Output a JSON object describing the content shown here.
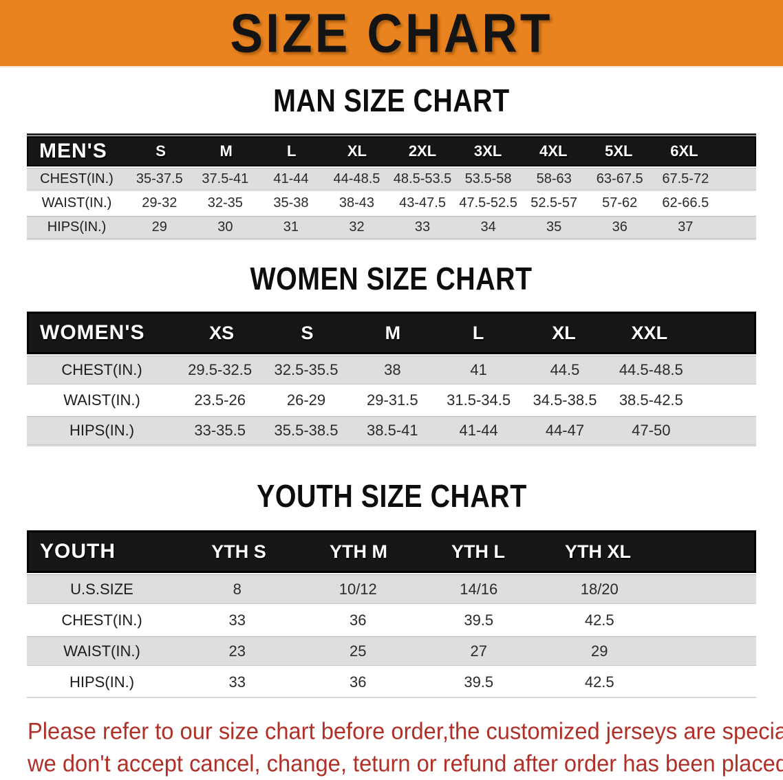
{
  "banner": {
    "title": "SIZE CHART"
  },
  "sections": [
    {
      "heading": "MAN SIZE CHART",
      "label": "MEN'S",
      "columns": [
        "S",
        "M",
        "L",
        "XL",
        "2XL",
        "3XL",
        "4XL",
        "5XL",
        "6XL"
      ],
      "rows": [
        {
          "label": "CHEST(IN.)",
          "values": [
            "35-37.5",
            "37.5-41",
            "41-44",
            "44-48.5",
            "48.5-53.5",
            "53.5-58",
            "58-63",
            "63-67.5",
            "67.5-72"
          ]
        },
        {
          "label": "WAIST(IN.)",
          "values": [
            "29-32",
            "32-35",
            "35-38",
            "38-43",
            "43-47.5",
            "47.5-52.5",
            "52.5-57",
            "57-62",
            "62-66.5"
          ]
        },
        {
          "label": "HIPS(IN.)",
          "values": [
            "29",
            "30",
            "31",
            "32",
            "33",
            "34",
            "35",
            "36",
            "37"
          ]
        }
      ]
    },
    {
      "heading": "WOMEN SIZE CHART",
      "label": "WOMEN'S",
      "columns": [
        "XS",
        "S",
        "M",
        "L",
        "XL",
        "XXL"
      ],
      "rows": [
        {
          "label": "CHEST(IN.)",
          "values": [
            "29.5-32.5",
            "32.5-35.5",
            "38",
            "41",
            "44.5",
            "44.5-48.5"
          ]
        },
        {
          "label": "WAIST(IN.)",
          "values": [
            "23.5-26",
            "26-29",
            "29-31.5",
            "31.5-34.5",
            "34.5-38.5",
            "38.5-42.5"
          ]
        },
        {
          "label": "HIPS(IN.)",
          "values": [
            "33-35.5",
            "35.5-38.5",
            "38.5-41",
            "41-44",
            "44-47",
            "47-50"
          ]
        }
      ]
    },
    {
      "heading": "YOUTH SIZE CHART",
      "label": "YOUTH",
      "columns": [
        "YTH S",
        "YTH M",
        "YTH L",
        "YTH XL"
      ],
      "rows": [
        {
          "label": "U.S.SIZE",
          "values": [
            "8",
            "10/12",
            "14/16",
            "18/20"
          ]
        },
        {
          "label": "CHEST(IN.)",
          "values": [
            "33",
            "36",
            "39.5",
            "42.5"
          ]
        },
        {
          "label": "WAIST(IN.)",
          "values": [
            "23",
            "25",
            "27",
            "29"
          ]
        },
        {
          "label": "HIPS(IN.)",
          "values": [
            "33",
            "36",
            "39.5",
            "42.5"
          ]
        }
      ]
    }
  ],
  "footer": {
    "line1": "Please refer to our size chart before order,the customized jerseys are special products,",
    "line2": "we don't accept cancel, change, teturn or refund after order has been placed!"
  },
  "colors": {
    "banner_bg": "#E8831F",
    "header_bar": "#161616",
    "row_gray": "#DEDEDE",
    "row_white": "#FFFFFF",
    "footer_red": "#B03028",
    "heading_text": "#0D0D0D"
  }
}
